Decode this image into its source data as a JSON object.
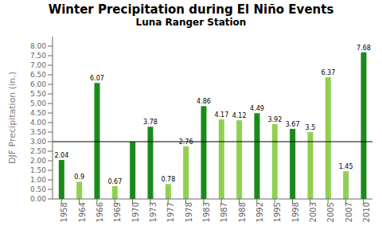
{
  "chart_data": {
    "type": "bar",
    "title": "Winter Precipitation during El Niño Events",
    "subtitle": "Luna Ranger Station",
    "ylabel": "DJF Precipitation (in.)",
    "categories": [
      "1958",
      "1964",
      "1966",
      "1969",
      "1970",
      "1973",
      "1977",
      "1978",
      "1983",
      "1987",
      "1988",
      "1992",
      "1995",
      "1998",
      "2003",
      "2005",
      "2007",
      "2010"
    ],
    "values": [
      2.04,
      0.9,
      6.07,
      0.67,
      3.0,
      3.78,
      0.78,
      2.76,
      4.86,
      4.17,
      4.12,
      4.49,
      3.92,
      3.67,
      3.5,
      6.37,
      1.45,
      7.68
    ],
    "value_labels": [
      "2.04",
      "0.9",
      "6.07",
      "0.67",
      null,
      "3.78",
      "0.78",
      "2.76",
      "4.86",
      "4.17",
      "4.12",
      "4.49",
      "3.92",
      "3.67",
      "3.5",
      "6.37",
      "1.45",
      "7.68"
    ],
    "data_labels": true,
    "colors": [
      "#1a8a1a",
      "#90d050",
      "#1a8a1a",
      "#90d050",
      "#1a8a1a",
      "#1a8a1a",
      "#90d050",
      "#90d050",
      "#1a8a1a",
      "#90d050",
      "#90d050",
      "#1a8a1a",
      "#90d050",
      "#1a8a1a",
      "#90d050",
      "#90d050",
      "#90d050",
      "#1a8a1a"
    ],
    "reference_line": 3.0,
    "ylim": [
      0.0,
      8.5
    ],
    "yticks": [
      {
        "value": 0.0,
        "label": "0.00"
      },
      {
        "value": 0.5,
        "label": "0.50"
      },
      {
        "value": 1.0,
        "label": "1.00"
      },
      {
        "value": 1.5,
        "label": "1.50"
      },
      {
        "value": 2.0,
        "label": "2.00"
      },
      {
        "value": 2.5,
        "label": "2.50"
      },
      {
        "value": 3.0,
        "label": "3.00"
      },
      {
        "value": 3.5,
        "label": "3.50"
      },
      {
        "value": 4.0,
        "label": "4.00"
      },
      {
        "value": 4.5,
        "label": "4.50"
      },
      {
        "value": 5.0,
        "label": "5.00"
      },
      {
        "value": 5.5,
        "label": "5.50"
      },
      {
        "value": 6.0,
        "label": "6.00"
      },
      {
        "value": 6.5,
        "label": "6.50"
      },
      {
        "value": 7.0,
        "label": "7.00"
      },
      {
        "value": 7.5,
        "label": "7.50"
      },
      {
        "value": 8.0,
        "label": "8.00"
      }
    ],
    "grid": false
  }
}
